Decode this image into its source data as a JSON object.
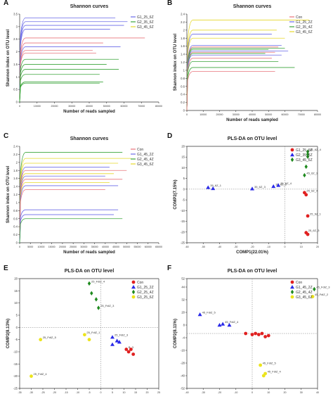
{
  "colors": {
    "con": "#e8737b",
    "g1": "#6a6ae8",
    "g2": "#3aa43a",
    "g3": "#e6d82a",
    "red": "#e02020",
    "blue": "#2a2ae8",
    "green": "#1f8a1f",
    "yellow": "#ece41c"
  },
  "panels": [
    {
      "letter": "A",
      "type": "line",
      "title": "Shannon curves",
      "xlabel": "Number of reads sampled",
      "ylabel": "Shannon index on OTU level",
      "xlim": [
        0,
        80000
      ],
      "ylim": [
        0,
        3.5
      ],
      "xticks": [
        0,
        10000,
        20000,
        30000,
        40000,
        50000,
        60000,
        70000,
        80000
      ],
      "yticks": [
        0,
        0.5,
        1,
        1.5,
        2,
        2.5,
        3,
        3.5
      ],
      "legend": [
        {
          "label": "G1_25_6Z",
          "color": "g1"
        },
        {
          "label": "G2_35_6Z",
          "color": "g2"
        },
        {
          "label": "G3_45_6Z",
          "color": "g3"
        }
      ],
      "curves": [
        {
          "plateau": 3.35,
          "end": 55000,
          "color": "g1"
        },
        {
          "plateau": 3.2,
          "end": 62000,
          "color": "g1"
        },
        {
          "plateau": 3.05,
          "end": 60000,
          "color": "g1"
        },
        {
          "plateau": 2.9,
          "end": 52000,
          "color": "g1"
        },
        {
          "plateau": 2.55,
          "end": 72000,
          "color": "con"
        },
        {
          "plateau": 2.35,
          "end": 48000,
          "color": "con"
        },
        {
          "plateau": 2.2,
          "end": 58000,
          "color": "g1"
        },
        {
          "plateau": 2.05,
          "end": 42000,
          "color": "con"
        },
        {
          "plateau": 1.95,
          "end": 44000,
          "color": "con"
        },
        {
          "plateau": 1.7,
          "end": 57000,
          "color": "g2"
        },
        {
          "plateau": 1.5,
          "end": 50000,
          "color": "g2"
        },
        {
          "plateau": 1.3,
          "end": 57000,
          "color": "g2"
        },
        {
          "plateau": 1.1,
          "end": 46000,
          "color": "g2"
        },
        {
          "plateau": 0.8,
          "end": 48000,
          "color": "g2"
        },
        {
          "plateau": 0.75,
          "end": 46000,
          "color": "g2"
        }
      ]
    },
    {
      "letter": "B",
      "type": "line",
      "title": "Shannon curves",
      "xlabel": "Number of reads sampled",
      "ylabel": "Shannon index on OTU level",
      "xlim": [
        0,
        80000
      ],
      "ylim": [
        0,
        2.4
      ],
      "xticks": [
        0,
        10000,
        20000,
        30000,
        40000,
        50000,
        60000,
        70000,
        80000
      ],
      "yticks": [
        0,
        0.2,
        0.4,
        0.6,
        0.8,
        1,
        1.2,
        1.4,
        1.6,
        1.8,
        2,
        2.2,
        2.4
      ],
      "legend": [
        {
          "label": "Con",
          "color": "con"
        },
        {
          "label": "G1_25_2Z",
          "color": "g1"
        },
        {
          "label": "G2_35_4Z",
          "color": "g2"
        },
        {
          "label": "G3_45_6Z",
          "color": "g3"
        }
      ],
      "curves": [
        {
          "plateau": 2.25,
          "end": 75000,
          "color": "g3"
        },
        {
          "plateau": 2.0,
          "end": 55000,
          "color": "g3"
        },
        {
          "plateau": 1.9,
          "end": 52000,
          "color": "g1"
        },
        {
          "plateau": 1.8,
          "end": 60000,
          "color": "g3"
        },
        {
          "plateau": 1.62,
          "end": 58000,
          "color": "g1"
        },
        {
          "plateau": 1.58,
          "end": 56000,
          "color": "con"
        },
        {
          "plateau": 1.55,
          "end": 60000,
          "color": "g2"
        },
        {
          "plateau": 1.52,
          "end": 50000,
          "color": "g2"
        },
        {
          "plateau": 1.48,
          "end": 62000,
          "color": "g1"
        },
        {
          "plateau": 1.45,
          "end": 54000,
          "color": "con"
        },
        {
          "plateau": 1.42,
          "end": 48000,
          "color": "g2"
        },
        {
          "plateau": 1.38,
          "end": 58000,
          "color": "g1"
        },
        {
          "plateau": 1.3,
          "end": 52000,
          "color": "con"
        },
        {
          "plateau": 1.22,
          "end": 56000,
          "color": "g2"
        },
        {
          "plateau": 1.07,
          "end": 66000,
          "color": "g2"
        },
        {
          "plateau": 0.97,
          "end": 54000,
          "color": "con"
        }
      ]
    },
    {
      "letter": "C",
      "type": "line",
      "title": "Shannon curves",
      "xlabel": "Number of reads sampled",
      "ylabel": "Shannon index on OTU level",
      "xlim": [
        0,
        65000
      ],
      "ylim": [
        0,
        2.4
      ],
      "xticks": [
        0,
        5000,
        10000,
        15000,
        20000,
        25000,
        30000,
        35000,
        40000,
        45000,
        50000,
        55000,
        60000,
        65000
      ],
      "yticks": [
        0,
        0.2,
        0.4,
        0.6,
        0.8,
        1,
        1.2,
        1.4,
        1.6,
        1.8,
        2,
        2.2,
        2.4
      ],
      "legend": [
        {
          "label": "Con",
          "color": "con"
        },
        {
          "label": "G1_45_2Z",
          "color": "g1"
        },
        {
          "label": "G2_45_4Z",
          "color": "g2"
        },
        {
          "label": "G3_45_6Z",
          "color": "g3"
        }
      ],
      "curves": [
        {
          "plateau": 2.25,
          "end": 48000,
          "color": "g2"
        },
        {
          "plateau": 2.1,
          "end": 52000,
          "color": "g3"
        },
        {
          "plateau": 1.98,
          "end": 46000,
          "color": "g3"
        },
        {
          "plateau": 1.88,
          "end": 42000,
          "color": "g1"
        },
        {
          "plateau": 1.8,
          "end": 50000,
          "color": "con"
        },
        {
          "plateau": 1.72,
          "end": 44000,
          "color": "g3"
        },
        {
          "plateau": 1.66,
          "end": 40000,
          "color": "g1"
        },
        {
          "plateau": 1.58,
          "end": 48000,
          "color": "con"
        },
        {
          "plateau": 1.5,
          "end": 42000,
          "color": "g3"
        },
        {
          "plateau": 1.42,
          "end": 46000,
          "color": "g1"
        },
        {
          "plateau": 1.32,
          "end": 40000,
          "color": "con"
        },
        {
          "plateau": 0.82,
          "end": 46000,
          "color": "g1"
        },
        {
          "plateau": 0.7,
          "end": 44000,
          "color": "g1"
        },
        {
          "plateau": 0.6,
          "end": 48000,
          "color": "g2"
        }
      ]
    },
    {
      "letter": "D",
      "type": "scatter",
      "title": "PLS-DA on OTU level",
      "xlabel": "COMP1(22.01%)",
      "ylabel": "COMP2(7.15%)",
      "xlim": [
        -60,
        20
      ],
      "ylim": [
        -25,
        20
      ],
      "xticks": [
        -60,
        -50,
        -40,
        -30,
        -20,
        -10,
        0,
        10,
        20
      ],
      "yticks": [
        -25,
        -20,
        -15,
        -10,
        -5,
        0,
        5,
        10,
        15,
        20
      ],
      "legend": [
        {
          "label": "G1_25_6Z",
          "color": "red",
          "marker": "circle"
        },
        {
          "label": "G2_35_6Z",
          "color": "blue",
          "marker": "triangle"
        },
        {
          "label": "G3_45_6Z",
          "color": "green",
          "marker": "diamond"
        }
      ],
      "points": [
        {
          "x": -47,
          "y": 0.8,
          "m": "triangle",
          "c": "blue",
          "label": "35_6Z_1"
        },
        {
          "x": -44,
          "y": 0.3,
          "m": "triangle",
          "c": "blue",
          "label": ""
        },
        {
          "x": -20,
          "y": 0.2,
          "m": "triangle",
          "c": "blue",
          "label": "35_6Z_3"
        },
        {
          "x": -7,
          "y": 1.3,
          "m": "triangle",
          "c": "blue",
          "label": "35_6Z_2"
        },
        {
          "x": -4,
          "y": 1.8,
          "m": "triangle",
          "c": "blue",
          "label": "35_6Z_4"
        },
        {
          "x": 14,
          "y": 17.5,
          "m": "diamond",
          "c": "green",
          "label": "45_6Z_4"
        },
        {
          "x": 14,
          "y": 16.3,
          "m": "diamond",
          "c": "green",
          "label": ""
        },
        {
          "x": 14,
          "y": 15.2,
          "m": "diamond",
          "c": "green",
          "label": ""
        },
        {
          "x": 13,
          "y": 10.5,
          "m": "diamond",
          "c": "green",
          "label": ""
        },
        {
          "x": 12,
          "y": 6.5,
          "m": "diamond",
          "c": "green",
          "label": "45_6Z_3"
        },
        {
          "x": 12,
          "y": -1.6,
          "m": "circle",
          "c": "red",
          "label": "25_6Z_4"
        },
        {
          "x": 13,
          "y": -2.6,
          "m": "circle",
          "c": "red",
          "label": ""
        },
        {
          "x": 14,
          "y": -12.5,
          "m": "circle",
          "c": "red",
          "label": "25_6Z_1"
        },
        {
          "x": 13,
          "y": -20.3,
          "m": "circle",
          "c": "red",
          "label": "25_6Z_3"
        },
        {
          "x": 14,
          "y": -21.1,
          "m": "circle",
          "c": "red",
          "label": ""
        }
      ]
    },
    {
      "letter": "E",
      "type": "scatter",
      "title": "PLS-DA on OTU level",
      "xlabel": "COMP1(15.23%)",
      "ylabel": "COMP2(8.13%)",
      "xlim": [
        -35,
        25
      ],
      "ylim": [
        -25,
        20
      ],
      "xticks": [
        -35,
        -30,
        -25,
        -20,
        -15,
        -10,
        -5,
        0,
        5,
        10,
        15,
        20,
        25
      ],
      "yticks": [
        -25,
        -20,
        -15,
        -10,
        -5,
        0,
        5,
        10,
        15,
        20
      ],
      "legend": [
        {
          "label": "Con",
          "color": "red",
          "marker": "circle"
        },
        {
          "label": "G1_25_2Z",
          "color": "blue",
          "marker": "triangle"
        },
        {
          "label": "G2_25_4Z",
          "color": "green",
          "marker": "diamond"
        },
        {
          "label": "G3_25_6Z",
          "color": "yellow",
          "marker": "circle"
        }
      ],
      "points": [
        {
          "x": -5,
          "y": 18,
          "m": "diamond",
          "c": "green",
          "label": "25_FdiZ_4"
        },
        {
          "x": -4,
          "y": 14,
          "m": "diamond",
          "c": "green",
          "label": ""
        },
        {
          "x": -2,
          "y": 11.5,
          "m": "diamond",
          "c": "green",
          "label": ""
        },
        {
          "x": -1,
          "y": 8,
          "m": "diamond",
          "c": "green",
          "label": "25_FdiZ_3"
        },
        {
          "x": -7,
          "y": -3,
          "m": "circle",
          "c": "yellow",
          "label": "25_FdiZ_1"
        },
        {
          "x": -26,
          "y": -5,
          "m": "circle",
          "c": "yellow",
          "label": "25_FdiZ_5"
        },
        {
          "x": -30,
          "y": -20,
          "m": "circle",
          "c": "yellow",
          "label": "25_FdiZ_4"
        },
        {
          "x": -5,
          "y": -5,
          "m": "circle",
          "c": "yellow",
          "label": ""
        },
        {
          "x": 5,
          "y": -4,
          "m": "triangle",
          "c": "blue",
          "label": "25_FdiZ_3"
        },
        {
          "x": 7,
          "y": -5.5,
          "m": "triangle",
          "c": "blue",
          "label": ""
        },
        {
          "x": 5,
          "y": -7,
          "m": "triangle",
          "c": "blue",
          "label": ""
        },
        {
          "x": 8,
          "y": -6,
          "m": "triangle",
          "c": "blue",
          "label": ""
        },
        {
          "x": 11,
          "y": -9,
          "m": "circle",
          "c": "red",
          "label": "B_3"
        },
        {
          "x": 12,
          "y": -10,
          "m": "circle",
          "c": "red",
          "label": ""
        },
        {
          "x": 13,
          "y": -9,
          "m": "circle",
          "c": "red",
          "label": ""
        },
        {
          "x": 14,
          "y": -11,
          "m": "circle",
          "c": "red",
          "label": ""
        }
      ]
    },
    {
      "letter": "F",
      "type": "scatter",
      "title": "PLS-DA on OTU level",
      "xlabel": "COMP1(16.56%)",
      "ylabel": "COMP2(8.11%)",
      "xlim": [
        -40,
        40
      ],
      "ylim": [
        -52,
        52
      ],
      "xticks": [
        -40,
        -30,
        -20,
        -10,
        0,
        10,
        20,
        30,
        40
      ],
      "yticks": [
        -52,
        -40,
        -28,
        -16,
        -4,
        8,
        20,
        32,
        44,
        52
      ],
      "legend": [
        {
          "label": "Con",
          "color": "red",
          "marker": "circle"
        },
        {
          "label": "G1_45_2Z",
          "color": "blue",
          "marker": "triangle"
        },
        {
          "label": "G2_45_4Z",
          "color": "green",
          "marker": "diamond"
        },
        {
          "label": "G3_45_6Z",
          "color": "yellow",
          "marker": "circle"
        }
      ],
      "points": [
        {
          "x": 38,
          "y": 42,
          "m": "diamond",
          "c": "green",
          "label": "45_FdiZ_3"
        },
        {
          "x": 37,
          "y": 35,
          "m": "circle",
          "c": "yellow",
          "label": "45_FdiZ_2"
        },
        {
          "x": -32,
          "y": 18,
          "m": "triangle",
          "c": "blue",
          "label": "45_FdiZ_5"
        },
        {
          "x": -20,
          "y": 8,
          "m": "triangle",
          "c": "blue",
          "label": ""
        },
        {
          "x": -18,
          "y": 9,
          "m": "triangle",
          "c": "blue",
          "label": "45_FdiZ_4"
        },
        {
          "x": -14,
          "y": 8,
          "m": "triangle",
          "c": "blue",
          "label": ""
        },
        {
          "x": -4,
          "y": 0,
          "m": "circle",
          "c": "red",
          "label": ""
        },
        {
          "x": 0,
          "y": -1,
          "m": "circle",
          "c": "red",
          "label": ""
        },
        {
          "x": 2,
          "y": 0,
          "m": "circle",
          "c": "red",
          "label": ""
        },
        {
          "x": 4,
          "y": -1,
          "m": "circle",
          "c": "red",
          "label": ""
        },
        {
          "x": 6,
          "y": 0,
          "m": "circle",
          "c": "red",
          "label": ""
        },
        {
          "x": 8,
          "y": -3,
          "m": "circle",
          "c": "red",
          "label": ""
        },
        {
          "x": 10,
          "y": -2,
          "m": "circle",
          "c": "red",
          "label": ""
        },
        {
          "x": 5,
          "y": -30,
          "m": "circle",
          "c": "yellow",
          "label": "45_FdiZ_5"
        },
        {
          "x": 8,
          "y": -38,
          "m": "circle",
          "c": "yellow",
          "label": "45_FdiZ_4"
        },
        {
          "x": 7,
          "y": -40,
          "m": "circle",
          "c": "yellow",
          "label": ""
        }
      ]
    }
  ]
}
